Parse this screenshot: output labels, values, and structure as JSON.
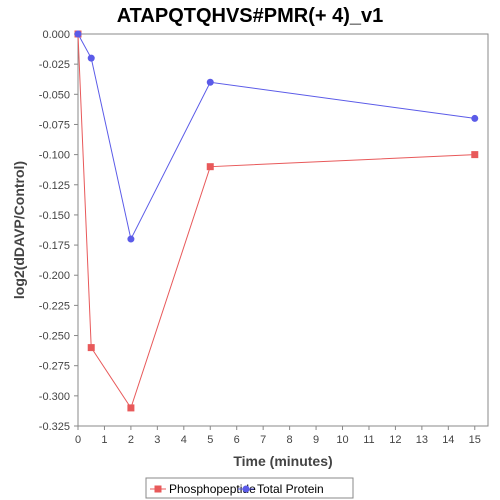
{
  "chart_data": {
    "type": "line",
    "title": "ATAPQTQHVS#PMR(+ 4)_v1",
    "xlabel": "Time (minutes)",
    "ylabel": "log2(dDAVP/Control)",
    "xlim": [
      0,
      15.5
    ],
    "ylim": [
      -0.325,
      0.0
    ],
    "x_ticks": [
      0,
      1,
      2,
      3,
      4,
      5,
      6,
      7,
      8,
      9,
      10,
      11,
      12,
      13,
      14,
      15
    ],
    "y_ticks": [
      0.0,
      -0.025,
      -0.05,
      -0.075,
      -0.1,
      -0.125,
      -0.15,
      -0.175,
      -0.2,
      -0.225,
      -0.25,
      -0.275,
      -0.3,
      -0.325
    ],
    "y_tick_labels": [
      "0.000",
      "-0.025",
      "-0.050",
      "-0.075",
      "-0.100",
      "-0.125",
      "-0.150",
      "-0.175",
      "-0.200",
      "-0.225",
      "-0.250",
      "-0.275",
      "-0.300",
      "-0.325"
    ],
    "legend_position": "bottom",
    "grid": false,
    "series": [
      {
        "name": "Phosphopeptide",
        "color": "#e8595a",
        "marker": "square",
        "x": [
          0,
          0.5,
          2,
          5,
          15
        ],
        "y": [
          0.0,
          -0.26,
          -0.31,
          -0.11,
          -0.1
        ]
      },
      {
        "name": "Total Protein",
        "color": "#5b5be8",
        "marker": "circle",
        "x": [
          0,
          0.5,
          2,
          5,
          15
        ],
        "y": [
          0.0,
          -0.02,
          -0.17,
          -0.04,
          -0.07
        ]
      }
    ]
  }
}
